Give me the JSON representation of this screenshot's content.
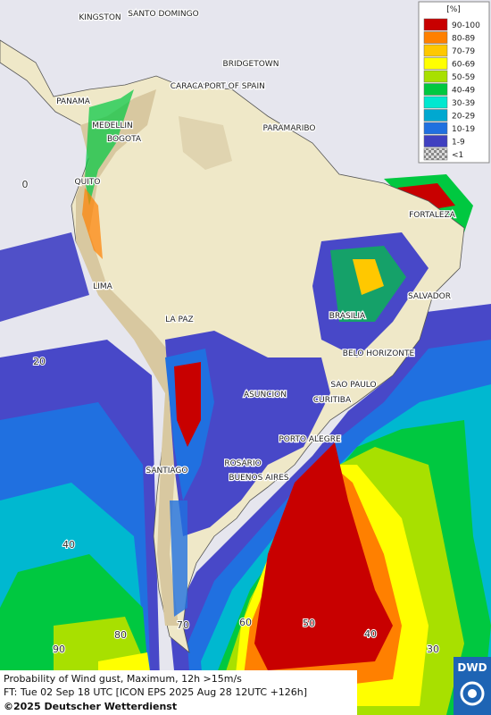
{
  "legend": {
    "unit": "[%]",
    "entries": [
      {
        "label": "90-100",
        "color": "#c80000"
      },
      {
        "label": "80-89",
        "color": "#ff8000"
      },
      {
        "label": "70-79",
        "color": "#ffc800"
      },
      {
        "label": "60-69",
        "color": "#ffff00"
      },
      {
        "label": "50-59",
        "color": "#a8e000"
      },
      {
        "label": "40-49",
        "color": "#00c840"
      },
      {
        "label": "30-39",
        "color": "#00e8d0"
      },
      {
        "label": "20-29",
        "color": "#00a8d0"
      },
      {
        "label": "10-19",
        "color": "#2070e0"
      },
      {
        "label": "1-9",
        "color": "#4040c0"
      },
      {
        "label": "<1",
        "color": "#c0c0c0"
      }
    ]
  },
  "cities": [
    "KINGSTON",
    "SANTO DOMINGO",
    "BRIDGETOWN",
    "CARACAS",
    "PORT OF SPAIN",
    "PANAMA",
    "MEDELLIN",
    "PARAMARIBO",
    "BOGOTA",
    "QUITO",
    "FORTALEZA",
    "LIMA",
    "SALVADOR",
    "LA PAZ",
    "BRASILIA",
    "BELO HORIZONTE",
    "ASUNCION",
    "SAO PAULO",
    "CURITIBA",
    "PORTO ALEGRE",
    "ROSARIO",
    "SANTIAGO",
    "BUENOS AIRES"
  ],
  "grid_labels": [
    0,
    20,
    40,
    90,
    80,
    70,
    60,
    50,
    40,
    30
  ],
  "caption": {
    "line1": "Probability of Wind gust, Maximum, 12h >15m/s",
    "line2": "FT: Tue 02 Sep 18 UTC [ICON EPS 2025 Aug 28 12UTC +126h]",
    "line3": "©2025 Deutscher Wetterdienst"
  },
  "logo": "DWD"
}
